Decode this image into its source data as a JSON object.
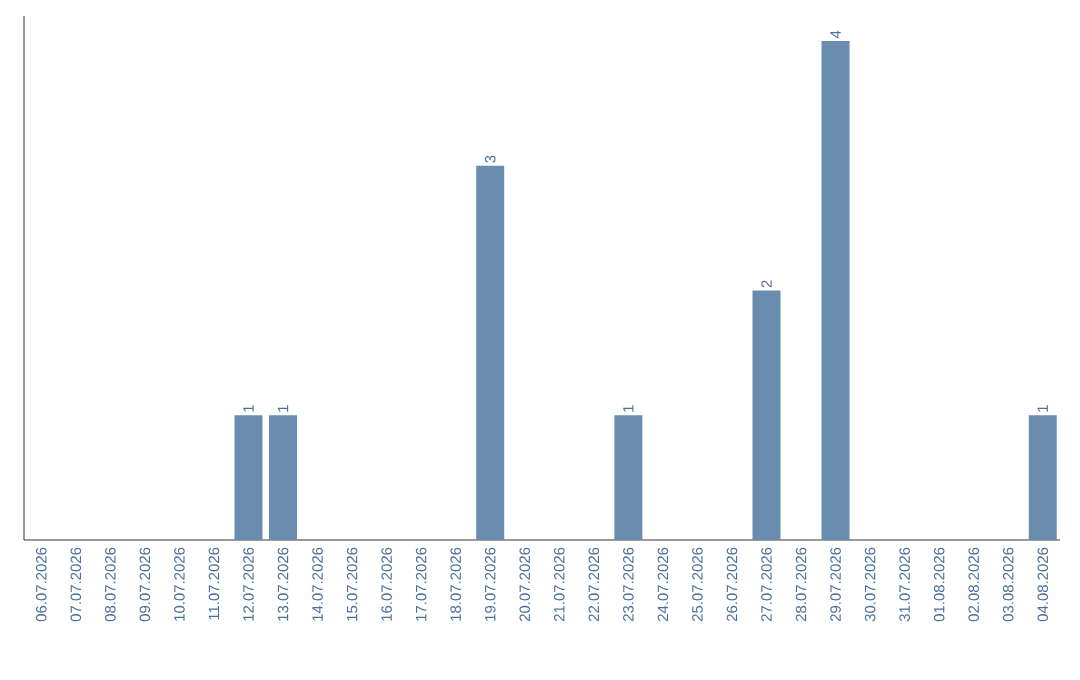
{
  "chart_data": {
    "type": "bar",
    "categories": [
      "06.07.2026",
      "07.07.2026",
      "08.07.2026",
      "09.07.2026",
      "10.07.2026",
      "11.07.2026",
      "12.07.2026",
      "13.07.2026",
      "14.07.2026",
      "15.07.2026",
      "16.07.2026",
      "17.07.2026",
      "18.07.2026",
      "19.07.2026",
      "20.07.2026",
      "21.07.2026",
      "22.07.2026",
      "23.07.2026",
      "24.07.2026",
      "25.07.2026",
      "26.07.2026",
      "27.07.2026",
      "28.07.2026",
      "29.07.2026",
      "30.07.2026",
      "31.07.2026",
      "01.08.2026",
      "02.08.2026",
      "03.08.2026",
      "04.08.2026"
    ],
    "values": [
      0,
      0,
      0,
      0,
      0,
      0,
      1,
      1,
      0,
      0,
      0,
      0,
      0,
      3,
      0,
      0,
      0,
      1,
      0,
      0,
      0,
      2,
      0,
      4,
      0,
      0,
      0,
      0,
      0,
      1
    ],
    "value_labels": [
      null,
      null,
      null,
      null,
      null,
      null,
      "1",
      "1",
      null,
      null,
      null,
      null,
      null,
      "3",
      null,
      null,
      null,
      "1",
      null,
      null,
      null,
      "2",
      null,
      "4",
      null,
      null,
      null,
      null,
      null,
      "1"
    ],
    "color": "#6a8caf",
    "tick_labels": "x"
  }
}
